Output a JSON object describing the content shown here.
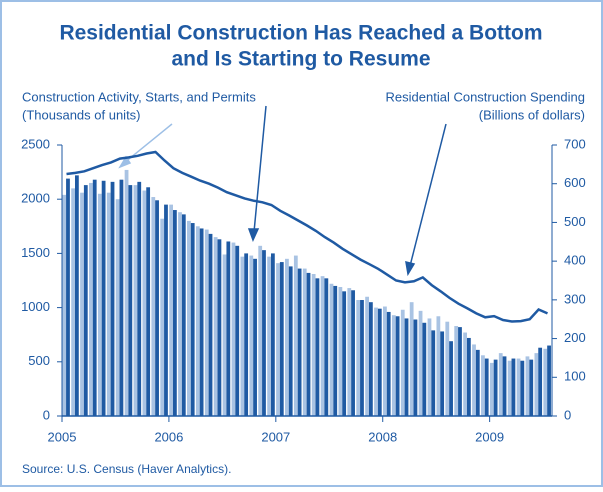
{
  "chart_data": {
    "type": "bar-line",
    "title": [
      "Residential Construction Has Reached a Bottom",
      "and Is Starting to Resume"
    ],
    "ylabel": [
      "Construction Activity, Starts, and Permits",
      "(Thousands of units)"
    ],
    "y2label": [
      "Residential Construction Spending",
      "(Billions of dollars)"
    ],
    "source": "Source: U.S. Census (Haver Analytics).",
    "categories": [
      "2005",
      null,
      null,
      null,
      null,
      null,
      null,
      null,
      null,
      null,
      null,
      null,
      "2006",
      null,
      null,
      null,
      null,
      null,
      null,
      null,
      null,
      null,
      null,
      null,
      "2007",
      null,
      null,
      null,
      null,
      null,
      null,
      null,
      null,
      null,
      null,
      null,
      "2008",
      null,
      null,
      null,
      null,
      null,
      null,
      null,
      null,
      null,
      null,
      null,
      "2009",
      null,
      null,
      null,
      null,
      null,
      null
    ],
    "series": [
      {
        "type": "bar",
        "color": "#a9c3e3",
        "values": [
          2040,
          2100,
          2060,
          2150,
          2050,
          2060,
          2000,
          2270,
          2130,
          2080,
          2020,
          1820,
          1950,
          1880,
          1800,
          1750,
          1720,
          1650,
          1490,
          1600,
          1470,
          1480,
          1570,
          1470,
          1410,
          1450,
          1480,
          1360,
          1310,
          1290,
          1220,
          1190,
          1180,
          1070,
          1100,
          1000,
          1010,
          930,
          980,
          1050,
          970,
          900,
          920,
          870,
          830,
          770,
          660,
          560,
          490,
          580,
          510,
          530,
          550,
          580,
          620
        ]
      },
      {
        "type": "bar",
        "color": "#1f5aa3",
        "values": [
          2190,
          2220,
          2130,
          2180,
          2170,
          2160,
          2180,
          2130,
          2160,
          2110,
          1990,
          1950,
          1900,
          1860,
          1780,
          1730,
          1680,
          1630,
          1610,
          1570,
          1500,
          1450,
          1530,
          1500,
          1420,
          1380,
          1360,
          1320,
          1270,
          1270,
          1200,
          1150,
          1160,
          1070,
          1050,
          990,
          960,
          920,
          900,
          890,
          860,
          790,
          780,
          690,
          820,
          720,
          610,
          530,
          520,
          550,
          530,
          510,
          520,
          630,
          650
        ]
      },
      {
        "type": "line",
        "axis": "y2",
        "color": "#1f5aa3",
        "values": [
          625,
          628,
          632,
          640,
          648,
          655,
          665,
          668,
          672,
          678,
          682,
          660,
          640,
          628,
          618,
          608,
          600,
          590,
          578,
          570,
          562,
          556,
          552,
          545,
          530,
          518,
          505,
          492,
          478,
          462,
          448,
          432,
          418,
          404,
          392,
          380,
          365,
          350,
          345,
          348,
          358,
          338,
          322,
          305,
          290,
          278,
          265,
          255,
          258,
          248,
          244,
          245,
          250,
          275,
          265
        ]
      }
    ],
    "ylim": [
      0,
      2500
    ],
    "yticks": [
      0,
      500,
      1000,
      1500,
      2000,
      2500
    ],
    "y2lim": [
      0,
      700
    ],
    "y2ticks": [
      0,
      100,
      200,
      300,
      400,
      500,
      600,
      700
    ]
  }
}
